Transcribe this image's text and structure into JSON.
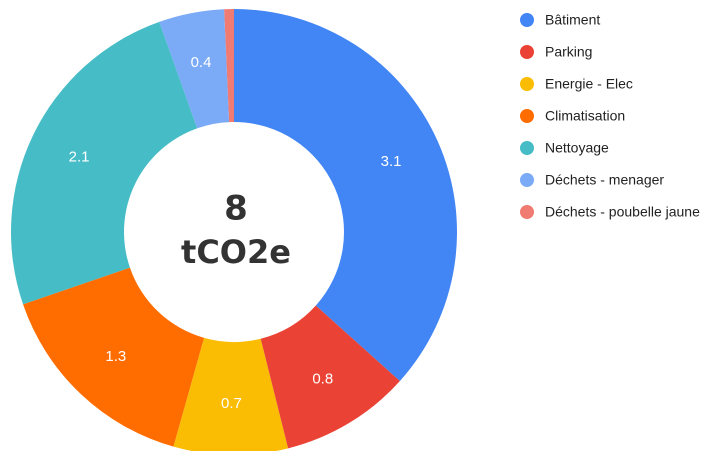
{
  "chart_data": {
    "type": "pie",
    "categories": [
      "Bâtiment",
      "Parking",
      "Energie - Elec",
      "Climatisation",
      "Nettoyage",
      "Déchets - menager",
      "Déchets - poubelle jaune"
    ],
    "values": [
      3.1,
      0.8,
      0.7,
      1.3,
      2.1,
      0.4,
      0.06
    ],
    "colors": [
      "#4285f4",
      "#ea4335",
      "#fbbc04",
      "#ff6d01",
      "#46bdc6",
      "#7baaf7",
      "#f07b72"
    ],
    "center_value": "8",
    "center_unit": "tCO2e",
    "legend": "right"
  }
}
